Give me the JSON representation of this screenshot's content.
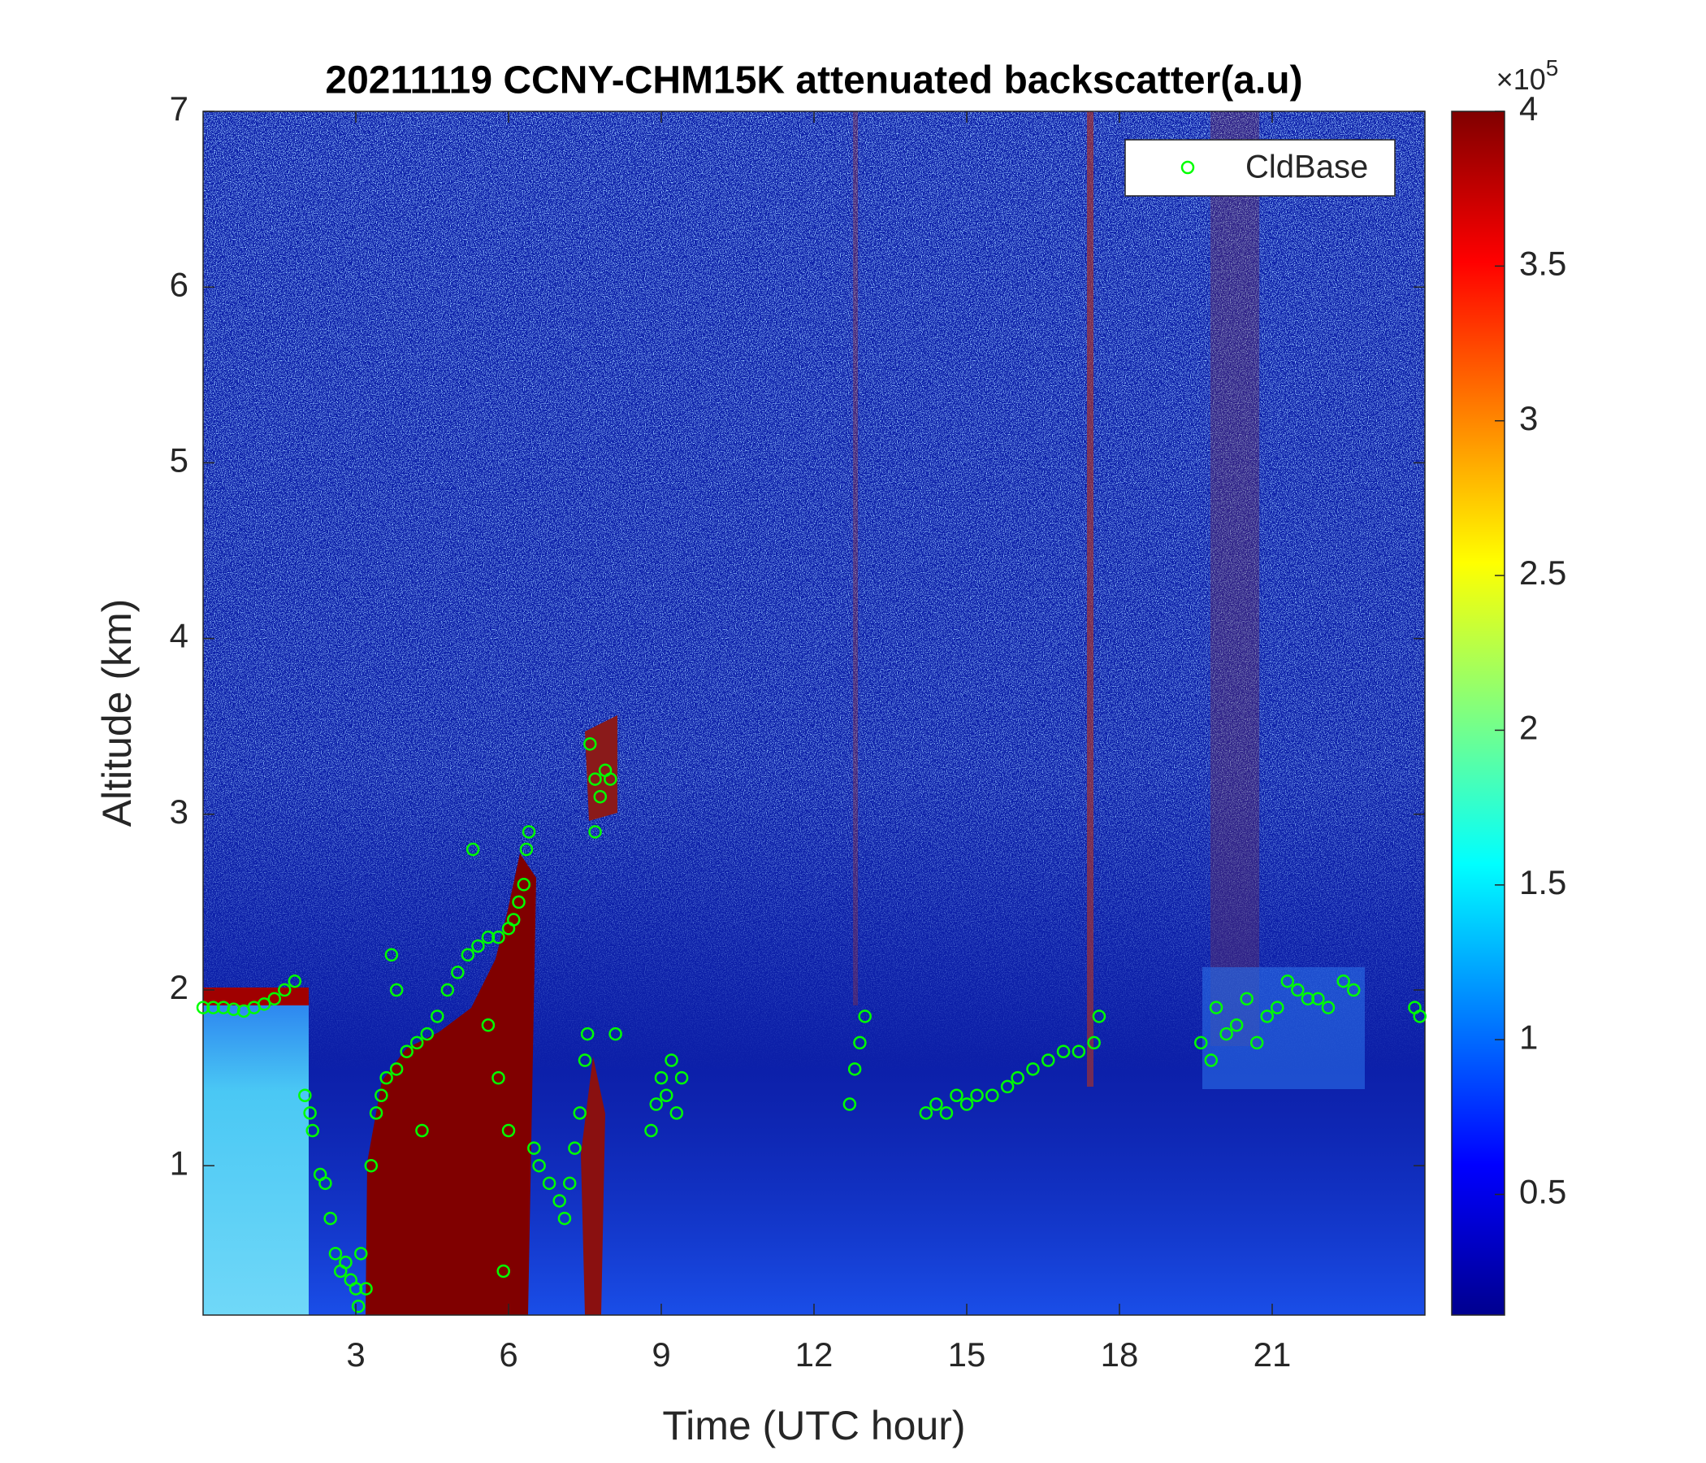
{
  "chart_data": {
    "type": "scatter",
    "title": "20211119 CCNY-CHM15K attenuated backscatter(a.u)",
    "x_label": "Time (UTC hour)",
    "y_label": "Altitude (km)",
    "xlim": [
      0,
      24
    ],
    "ylim": [
      0.15,
      7
    ],
    "xticks": [
      3,
      6,
      9,
      12,
      15,
      18,
      21
    ],
    "yticks": [
      1,
      2,
      3,
      4,
      5,
      6,
      7
    ],
    "legend": "northeast",
    "colorbar_lim": [
      0.11,
      4
    ],
    "colorbar_ticks": [
      0.5,
      1,
      1.5,
      2,
      2.5,
      3,
      3.5,
      4
    ],
    "colorbar_multiplier": {
      "base": "×10",
      "exponent": "5"
    },
    "series": [
      {
        "name": "CldBase",
        "color": "#00ff00",
        "x": [
          0,
          0.2,
          0.4,
          0.6,
          0.8,
          1.0,
          1.2,
          1.4,
          1.6,
          1.8,
          2.0,
          2.1,
          2.15,
          2.3,
          2.4,
          2.5,
          2.6,
          2.7,
          2.8,
          2.9,
          3.0,
          3.05,
          3.1,
          3.2,
          3.3,
          3.4,
          3.5,
          3.6,
          3.8,
          4.0,
          4.2,
          4.4,
          4.6,
          4.8,
          5.0,
          5.2,
          5.4,
          5.6,
          5.8,
          6.0,
          6.1,
          6.2,
          6.3,
          6.35,
          6.4,
          3.7,
          3.8,
          5.3,
          4.3,
          5.6,
          5.8,
          6.0,
          5.9,
          6.5,
          6.6,
          6.8,
          7.0,
          7.1,
          7.2,
          7.3,
          7.4,
          7.5,
          7.55,
          7.6,
          7.7,
          7.8,
          7.9,
          8.0,
          7.7,
          8.1,
          8.8,
          8.9,
          9.0,
          9.1,
          9.2,
          9.3,
          9.4,
          12.7,
          12.8,
          12.9,
          13.0,
          14.2,
          14.4,
          14.6,
          14.8,
          15.0,
          15.2,
          15.5,
          15.8,
          16.0,
          16.3,
          16.6,
          16.9,
          17.2,
          17.5,
          17.6,
          19.6,
          19.8,
          19.9,
          20.1,
          20.3,
          20.5,
          20.7,
          20.9,
          21.1,
          21.3,
          21.5,
          21.7,
          21.9,
          22.1,
          22.4,
          22.6,
          23.8,
          23.9
        ],
        "y": [
          1.9,
          1.9,
          1.9,
          1.89,
          1.88,
          1.9,
          1.92,
          1.95,
          2.0,
          2.05,
          1.4,
          1.3,
          1.2,
          0.95,
          0.9,
          0.7,
          0.5,
          0.4,
          0.45,
          0.35,
          0.3,
          0.2,
          0.5,
          0.3,
          1.0,
          1.3,
          1.4,
          1.5,
          1.55,
          1.65,
          1.7,
          1.75,
          1.85,
          2.0,
          2.1,
          2.2,
          2.25,
          2.3,
          2.3,
          2.35,
          2.4,
          2.5,
          2.6,
          2.8,
          2.9,
          2.2,
          2.0,
          2.8,
          1.2,
          1.8,
          1.5,
          1.2,
          0.4,
          1.1,
          1.0,
          0.9,
          0.8,
          0.7,
          0.9,
          1.1,
          1.3,
          1.6,
          1.75,
          3.4,
          3.2,
          3.1,
          3.25,
          3.2,
          2.9,
          1.75,
          1.2,
          1.35,
          1.5,
          1.4,
          1.6,
          1.3,
          1.5,
          1.35,
          1.55,
          1.7,
          1.85,
          1.3,
          1.35,
          1.3,
          1.4,
          1.35,
          1.4,
          1.4,
          1.45,
          1.5,
          1.55,
          1.6,
          1.65,
          1.65,
          1.7,
          1.85,
          1.7,
          1.6,
          1.9,
          1.75,
          1.8,
          1.95,
          1.7,
          1.85,
          1.9,
          2.05,
          2.0,
          1.95,
          1.95,
          1.9,
          2.05,
          2.0,
          1.9,
          1.85
        ]
      }
    ]
  }
}
